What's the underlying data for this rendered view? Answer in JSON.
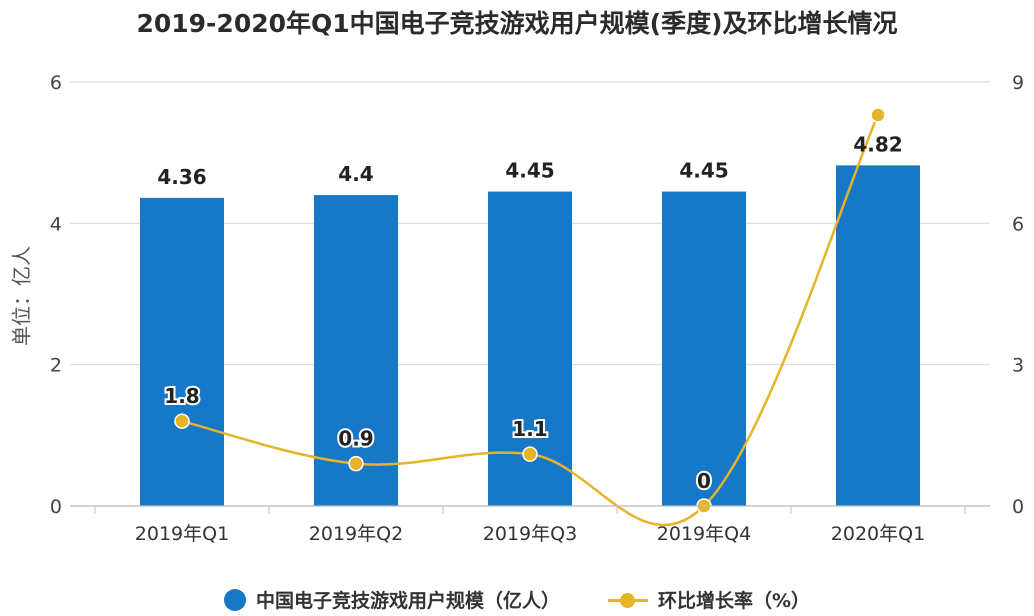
{
  "chart_data": {
    "type": "bar",
    "title": "2019-2020年Q1中国电子竞技游戏用户规模(季度)及环比增长情况",
    "categories": [
      "2019年Q1",
      "2019年Q2",
      "2019年Q3",
      "2019年Q4",
      "2020年Q1"
    ],
    "ylabel": "单位：亿人",
    "ylim": [
      0,
      6
    ],
    "yticks": [
      0,
      2,
      4,
      6
    ],
    "y2lim": [
      0,
      9
    ],
    "y2ticks": [
      0,
      3,
      6,
      9
    ],
    "grid": true,
    "legend_position": "bottom",
    "series": [
      {
        "name": "中国电子竞技游戏用户规模（亿人）",
        "type": "bar",
        "axis": "left",
        "values": [
          4.36,
          4.4,
          4.45,
          4.45,
          4.82
        ],
        "labels": [
          "4.36",
          "4.4",
          "4.45",
          "4.45",
          "4.82"
        ],
        "color": "#1878c8"
      },
      {
        "name": "环比增长率（%）",
        "type": "line",
        "axis": "right",
        "values": [
          1.8,
          0.9,
          1.1,
          0,
          8.3
        ],
        "labels": [
          "1.8",
          "0.9",
          "1.1",
          "0",
          ""
        ],
        "color": "#e6b427"
      }
    ]
  }
}
